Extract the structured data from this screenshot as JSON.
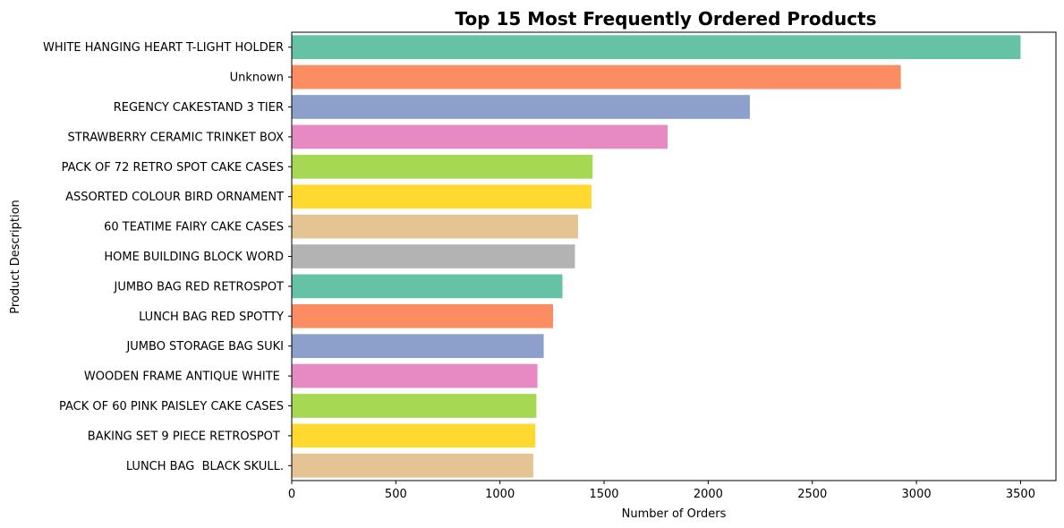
{
  "chart_data": {
    "type": "bar",
    "orientation": "horizontal",
    "title": "Top 15 Most Frequently Ordered Products",
    "xlabel": "Number of Orders",
    "ylabel": "Product Description",
    "xlim": [
      0,
      3670
    ],
    "xticks": [
      "0",
      "500",
      "1000",
      "1500",
      "2000",
      "2500",
      "3000",
      "3500"
    ],
    "grid": false,
    "categories": [
      "WHITE HANGING HEART T-LIGHT HOLDER",
      "Unknown",
      "REGENCY CAKESTAND 3 TIER",
      "STRAWBERRY CERAMIC TRINKET BOX",
      "PACK OF 72 RETRO SPOT CAKE CASES",
      "ASSORTED COLOUR BIRD ORNAMENT",
      "60 TEATIME FAIRY CAKE CASES",
      "HOME BUILDING BLOCK WORD",
      "JUMBO BAG RED RETROSPOT",
      "LUNCH BAG RED SPOTTY",
      "JUMBO STORAGE BAG SUKI",
      "WOODEN FRAME ANTIQUE WHITE ",
      "PACK OF 60 PINK PAISLEY CAKE CASES",
      "BAKING SET 9 PIECE RETROSPOT ",
      "LUNCH BAG  BLACK SKULL."
    ],
    "values": [
      3500,
      2925,
      2200,
      1805,
      1445,
      1440,
      1375,
      1360,
      1300,
      1255,
      1210,
      1180,
      1175,
      1170,
      1160
    ],
    "colors": [
      "#66c2a5",
      "#fc8d62",
      "#8da0cb",
      "#e78ac3",
      "#a6d854",
      "#ffd92f",
      "#e5c494",
      "#b3b3b3",
      "#66c2a5",
      "#fc8d62",
      "#8da0cb",
      "#e78ac3",
      "#a6d854",
      "#ffd92f",
      "#e5c494"
    ]
  }
}
